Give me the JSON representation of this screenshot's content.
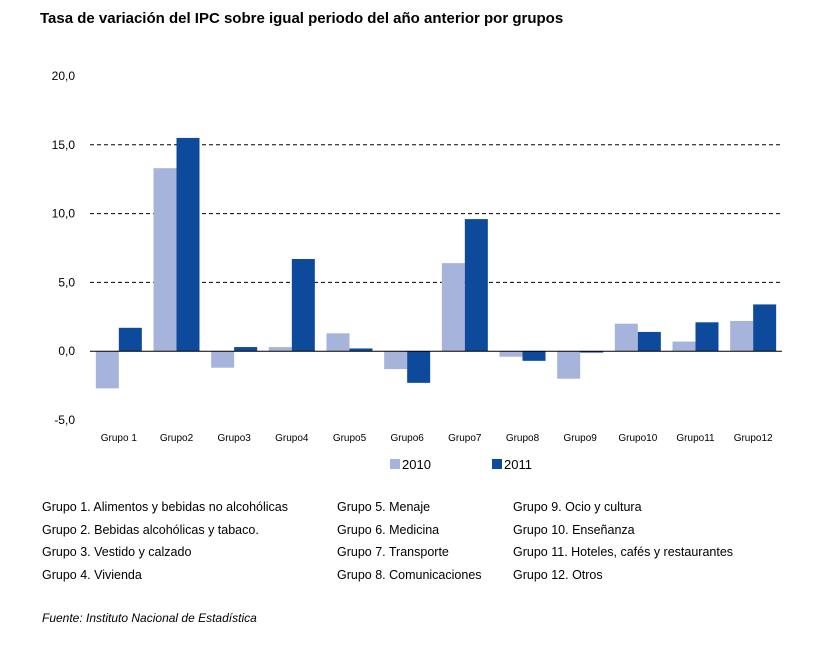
{
  "title": "Tasa de variación del IPC sobre igual periodo del año anterior por grupos",
  "chart_data": {
    "type": "bar",
    "categories": [
      "Grupo 1",
      "Grupo2",
      "Grupo3",
      "Grupo4",
      "Grupo5",
      "Grupo6",
      "Grupo7",
      "Grupo8",
      "Grupo9",
      "Grupo10",
      "Grupo11",
      "Grupo12"
    ],
    "series": [
      {
        "name": "2010",
        "color": "#a6b4dc",
        "values": [
          -2.7,
          13.3,
          -1.2,
          0.3,
          1.3,
          -1.3,
          6.4,
          -0.4,
          -2.0,
          2.0,
          0.7,
          2.2
        ]
      },
      {
        "name": "2011",
        "color": "#0d4a9b",
        "values": [
          1.7,
          15.5,
          0.3,
          6.7,
          0.2,
          -2.3,
          9.6,
          -0.7,
          -0.1,
          1.4,
          2.1,
          3.4
        ]
      }
    ],
    "ylim": [
      -5,
      20
    ],
    "yticks": [
      "-5,0",
      "0,0",
      "5,0",
      "10,0",
      "15,0",
      "20,0"
    ],
    "ytick_values": [
      -5,
      0,
      5,
      10,
      15,
      20
    ],
    "grid": "dashed horizontal at 5, 10, 15",
    "legend": "bottom-center"
  },
  "groups": {
    "col1": [
      "Grupo 1. Alimentos y bebidas no alcohólicas",
      "Grupo 2. Bebidas alcohólicas y  tabaco.",
      "Grupo 3. Vestido y calzado",
      "Grupo 4. Vivienda"
    ],
    "col2": [
      "Grupo 5. Menaje",
      "Grupo 6. Medicina",
      "Grupo 7. Transporte",
      "Grupo 8. Comunicaciones"
    ],
    "col3": [
      "Grupo 9. Ocio y cultura",
      "Grupo 10. Enseñanza",
      "Grupo 11. Hoteles, cafés y restaurantes",
      "Grupo 12. Otros"
    ]
  },
  "source": "Fuente: Instituto Nacional de Estadística"
}
